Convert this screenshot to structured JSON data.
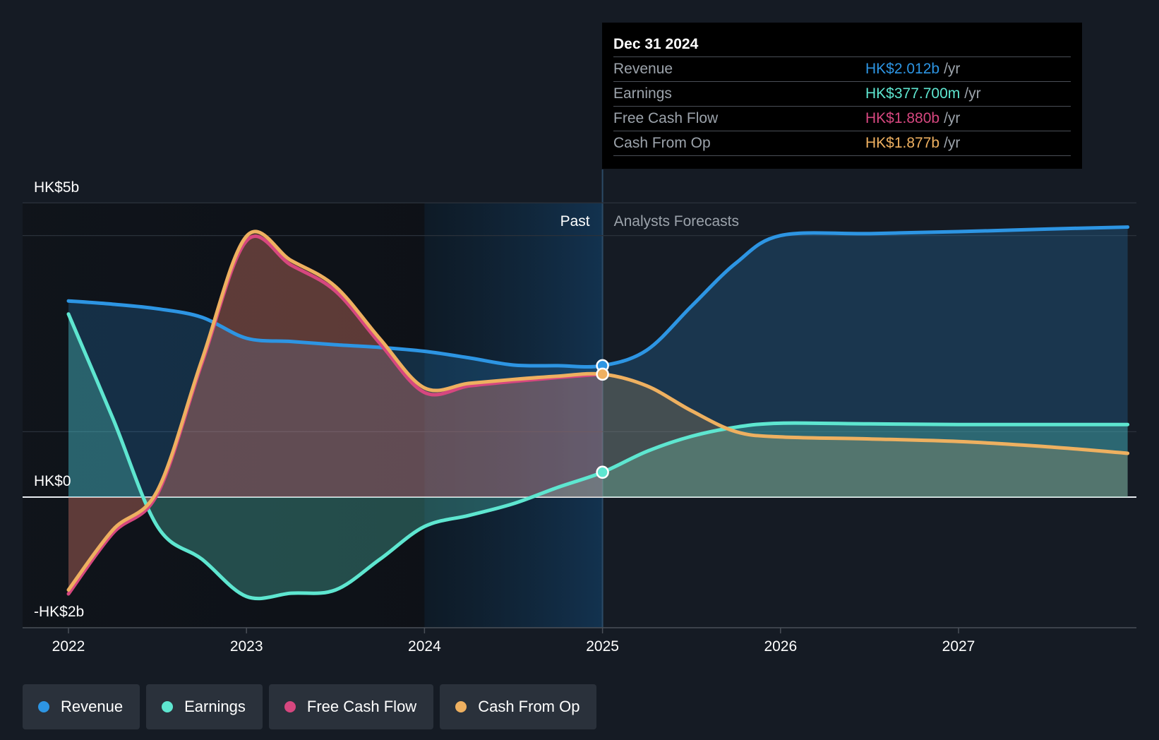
{
  "tooltip": {
    "date": "Dec 31 2024",
    "rows": [
      {
        "label": "Revenue",
        "value": "HK$2.012b",
        "unit": "/yr",
        "color": "#2d95e3"
      },
      {
        "label": "Earnings",
        "value": "HK$377.700m",
        "unit": "/yr",
        "color": "#5ee6d0"
      },
      {
        "label": "Free Cash Flow",
        "value": "HK$1.880b",
        "unit": "/yr",
        "color": "#d6477f"
      },
      {
        "label": "Cash From Op",
        "value": "HK$1.877b",
        "unit": "/yr",
        "color": "#eeb060"
      }
    ]
  },
  "legend": [
    {
      "label": "Revenue",
      "color": "#2d95e3"
    },
    {
      "label": "Earnings",
      "color": "#5ee6d0"
    },
    {
      "label": "Free Cash Flow",
      "color": "#d6477f"
    },
    {
      "label": "Cash From Op",
      "color": "#eeb060"
    }
  ],
  "chart_data": {
    "type": "line",
    "y_tick_labels": [
      "HK$5b",
      "HK$0",
      "-HK$2b"
    ],
    "y_ticks": [
      4.5,
      0,
      -2
    ],
    "ylim": [
      -2,
      4.5
    ],
    "xlim": [
      2021.75,
      2027.95
    ],
    "x_ticks": [
      2022,
      2023,
      2024,
      2025,
      2026,
      2027
    ],
    "x_tick_labels": [
      "2022",
      "2023",
      "2024",
      "2025",
      "2026",
      "2027"
    ],
    "divider_x": 2025.0,
    "highlight_start_x": 2024.0,
    "past_label": "Past",
    "forecast_label": "Analysts Forecasts",
    "series": [
      {
        "name": "Revenue",
        "color": "#2d95e3",
        "x": [
          2022.0,
          2022.25,
          2022.5,
          2022.75,
          2023.0,
          2023.25,
          2023.5,
          2023.75,
          2024.0,
          2024.25,
          2024.5,
          2024.75,
          2025.0,
          2025.25,
          2025.5,
          2025.75,
          2026.0,
          2026.5,
          2027.0,
          2027.5,
          2027.95
        ],
        "y": [
          3.0,
          2.95,
          2.88,
          2.75,
          2.43,
          2.38,
          2.33,
          2.29,
          2.23,
          2.13,
          2.02,
          2.01,
          2.01,
          2.25,
          2.92,
          3.58,
          4.0,
          4.03,
          4.06,
          4.1,
          4.13
        ]
      },
      {
        "name": "Earnings",
        "color": "#5ee6d0",
        "x": [
          2022.0,
          2022.25,
          2022.5,
          2022.75,
          2023.0,
          2023.25,
          2023.5,
          2023.75,
          2024.0,
          2024.25,
          2024.5,
          2024.75,
          2025.0,
          2025.25,
          2025.5,
          2025.75,
          2026.0,
          2026.5,
          2027.0,
          2027.5,
          2027.95
        ],
        "y": [
          2.8,
          1.2,
          -0.45,
          -0.95,
          -1.52,
          -1.47,
          -1.42,
          -0.95,
          -0.45,
          -0.28,
          -0.1,
          0.15,
          0.38,
          0.7,
          0.93,
          1.07,
          1.13,
          1.12,
          1.11,
          1.11,
          1.11
        ]
      },
      {
        "name": "Free Cash Flow",
        "color": "#d6477f",
        "x": [
          2022.0,
          2022.25,
          2022.5,
          2022.75,
          2023.0,
          2023.25,
          2023.5,
          2023.75,
          2024.0,
          2024.25,
          2024.5,
          2024.75,
          2025.0
        ],
        "y": [
          -1.48,
          -0.55,
          0.05,
          2.05,
          3.92,
          3.55,
          3.15,
          2.35,
          1.6,
          1.7,
          1.77,
          1.83,
          1.88
        ]
      },
      {
        "name": "Cash From Op",
        "color": "#eeb060",
        "x": [
          2022.0,
          2022.25,
          2022.5,
          2022.75,
          2023.0,
          2023.25,
          2023.5,
          2023.75,
          2024.0,
          2024.25,
          2024.5,
          2024.75,
          2025.0,
          2025.25,
          2025.5,
          2025.75,
          2026.0,
          2026.5,
          2027.0,
          2027.5,
          2027.95
        ],
        "y": [
          -1.42,
          -0.5,
          0.1,
          2.1,
          3.99,
          3.62,
          3.22,
          2.42,
          1.67,
          1.74,
          1.8,
          1.85,
          1.88,
          1.7,
          1.32,
          1.0,
          0.92,
          0.89,
          0.85,
          0.77,
          0.67
        ]
      }
    ],
    "highlight_points": [
      {
        "series": "Revenue",
        "x": 2025.0,
        "y": 2.01
      },
      {
        "series": "Cash From Op",
        "x": 2025.0,
        "y": 1.88
      },
      {
        "series": "Earnings",
        "x": 2025.0,
        "y": 0.38
      }
    ]
  }
}
